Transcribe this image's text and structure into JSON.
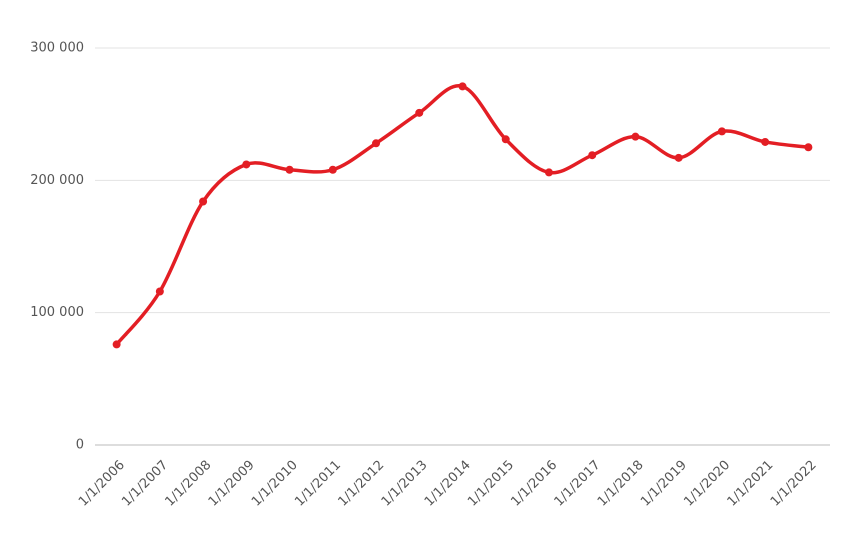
{
  "chart_data": {
    "type": "line",
    "categories": [
      "1/1/2006",
      "1/1/2007",
      "1/1/2008",
      "1/1/2009",
      "1/1/2010",
      "1/1/2011",
      "1/1/2012",
      "1/1/2013",
      "1/1/2014",
      "1/1/2015",
      "1/1/2016",
      "1/1/2017",
      "1/1/2018",
      "1/1/2019",
      "1/1/2020",
      "1/1/2021",
      "1/1/2022"
    ],
    "series": [
      {
        "color": "#e31e24",
        "values": [
          76000,
          116000,
          184000,
          212000,
          208000,
          208000,
          228000,
          251000,
          271000,
          231000,
          206000,
          219000,
          233000,
          217000,
          237000,
          229000,
          225000
        ]
      }
    ],
    "ylim": [
      0,
      300000
    ],
    "yticks": [
      0,
      {
        "value": 100000,
        "label": "100 000"
      },
      {
        "value": 200000,
        "label": "200 000"
      },
      {
        "value": 300000,
        "label": "300 000"
      }
    ],
    "grid": true,
    "smooth": true
  }
}
